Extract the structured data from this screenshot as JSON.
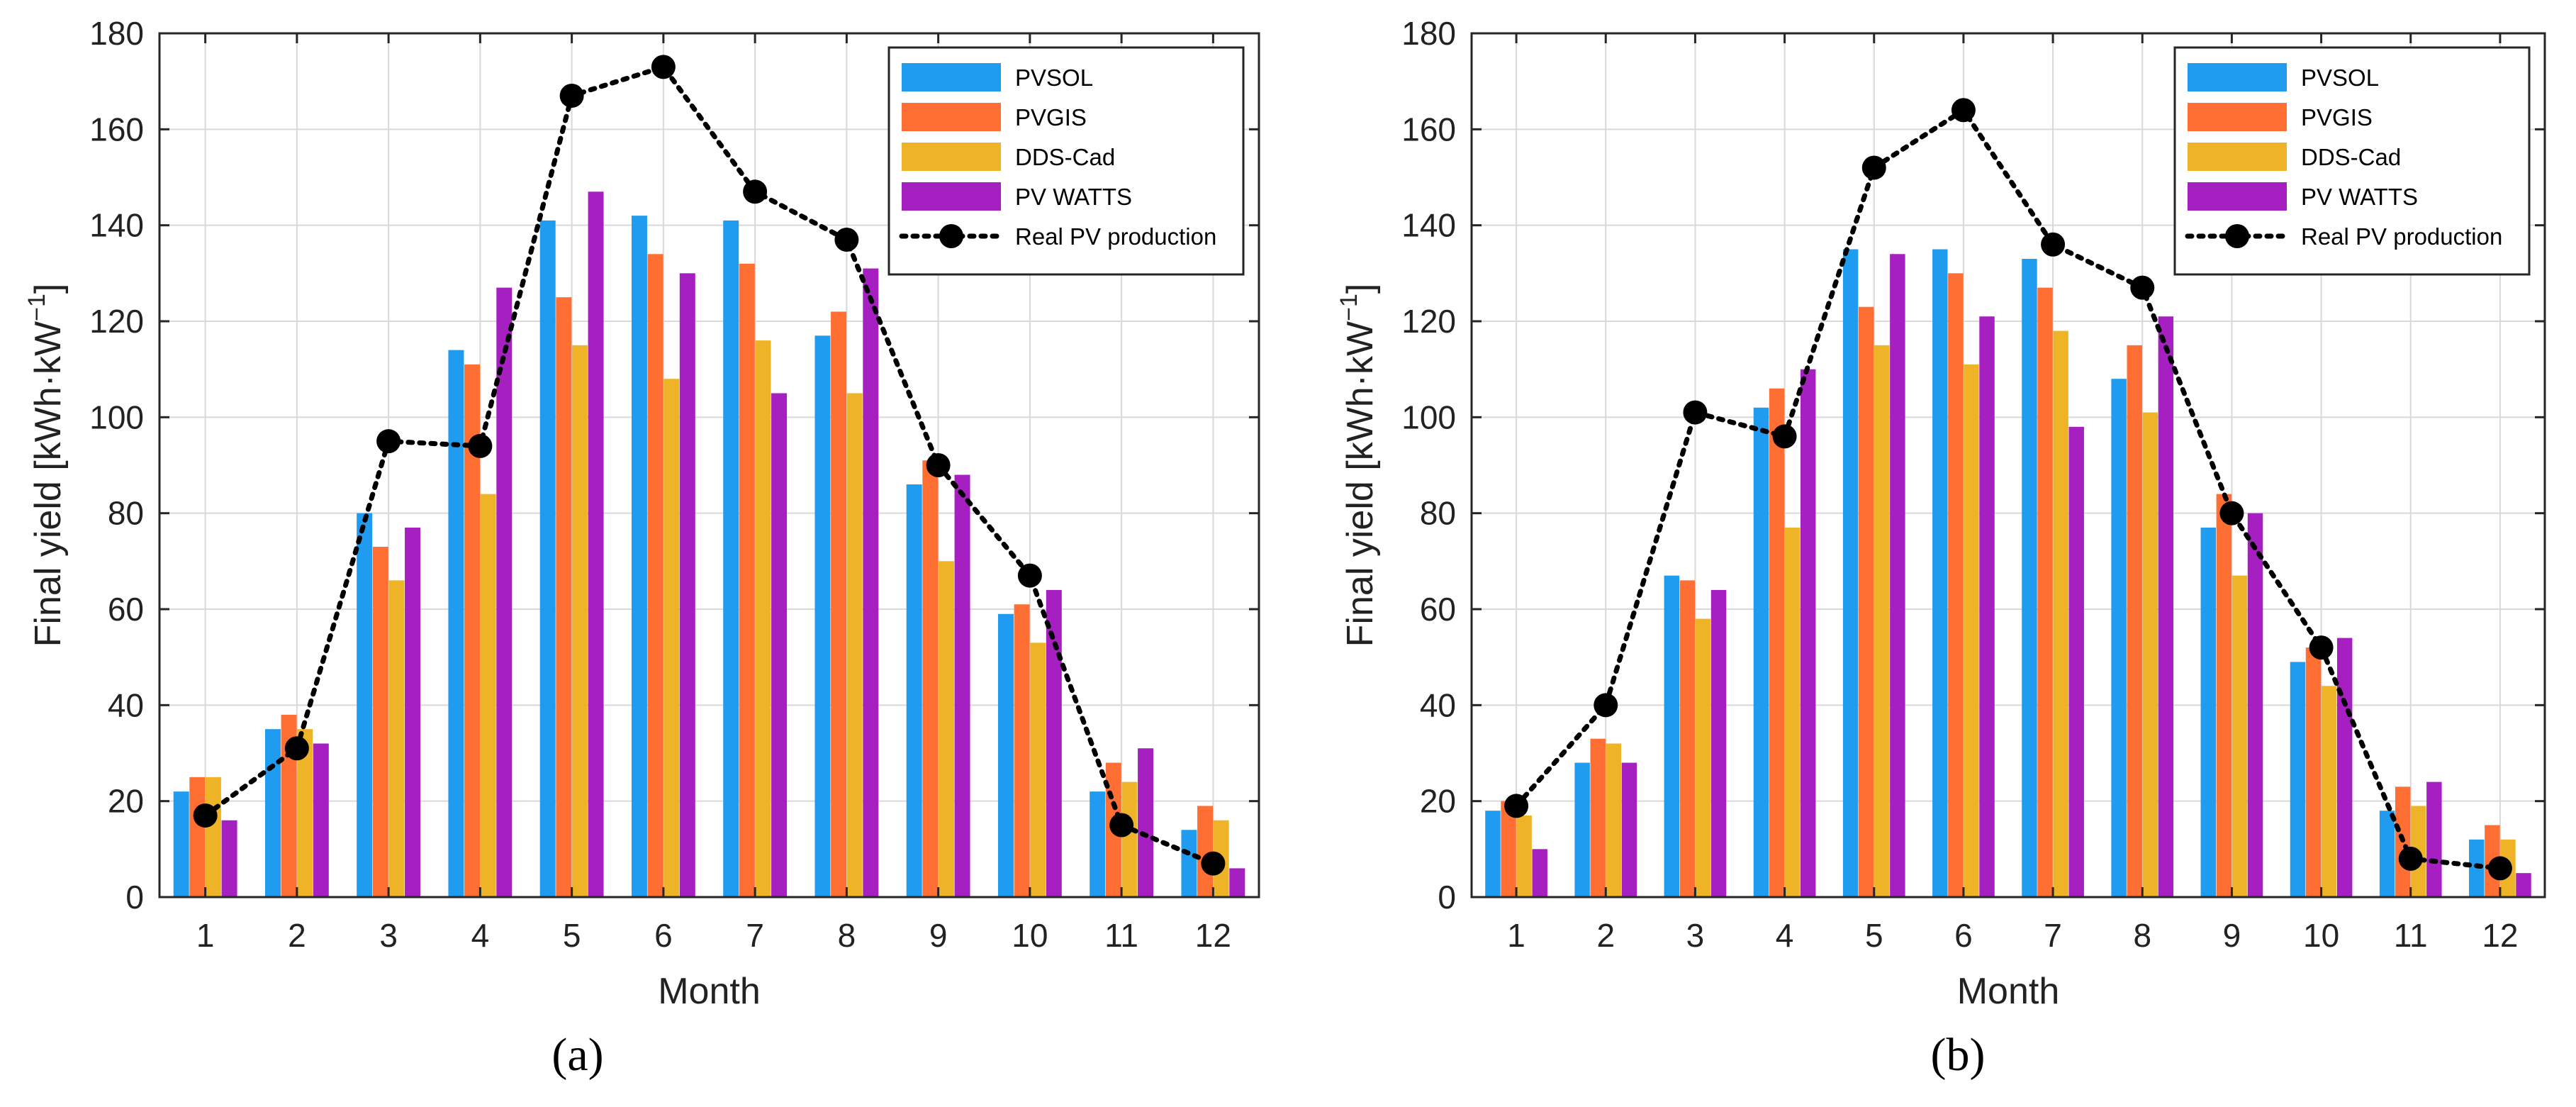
{
  "figure": {
    "panel_labels": [
      "(a)",
      "(b)"
    ]
  },
  "chart_data": [
    {
      "type": "bar",
      "panel": "(a)",
      "title": "",
      "xlabel": "Month",
      "ylabel_main": "Final yield [kWh·kW",
      "ylabel_sup": "−1",
      "ylabel_end": "]",
      "ylim": [
        0,
        180
      ],
      "yticks": [
        0,
        20,
        40,
        60,
        80,
        100,
        120,
        140,
        160,
        180
      ],
      "categories": [
        "1",
        "2",
        "3",
        "4",
        "5",
        "6",
        "7",
        "8",
        "9",
        "10",
        "11",
        "12"
      ],
      "grid": true,
      "legend_position": "top-right",
      "series": [
        {
          "name": "PVSOL",
          "color": "#1f9cf0",
          "values": [
            22,
            35,
            80,
            114,
            141,
            142,
            141,
            117,
            86,
            59,
            22,
            14
          ]
        },
        {
          "name": "PVGIS",
          "color": "#ff6e33",
          "values": [
            25,
            38,
            73,
            111,
            125,
            134,
            132,
            122,
            91,
            61,
            28,
            19
          ]
        },
        {
          "name": "DDS-Cad",
          "color": "#efb327",
          "values": [
            25,
            35,
            66,
            84,
            115,
            108,
            116,
            105,
            70,
            53,
            24,
            16
          ]
        },
        {
          "name": "PV WATTS",
          "color": "#a61fc0",
          "values": [
            16,
            32,
            77,
            127,
            147,
            130,
            105,
            131,
            88,
            64,
            31,
            6
          ]
        }
      ],
      "line": {
        "name": "Real PV production",
        "color": "#000000",
        "values": [
          17,
          31,
          95,
          94,
          167,
          173,
          147,
          137,
          90,
          67,
          15,
          7
        ]
      }
    },
    {
      "type": "bar",
      "panel": "(b)",
      "title": "",
      "xlabel": "Month",
      "ylabel_main": "Final yield [kWh·kW",
      "ylabel_sup": "−1",
      "ylabel_end": "]",
      "ylim": [
        0,
        180
      ],
      "yticks": [
        0,
        20,
        40,
        60,
        80,
        100,
        120,
        140,
        160,
        180
      ],
      "categories": [
        "1",
        "2",
        "3",
        "4",
        "5",
        "6",
        "7",
        "8",
        "9",
        "10",
        "11",
        "12"
      ],
      "grid": true,
      "legend_position": "top-right",
      "series": [
        {
          "name": "PVSOL",
          "color": "#1f9cf0",
          "values": [
            18,
            28,
            67,
            102,
            135,
            135,
            133,
            108,
            77,
            49,
            18,
            12
          ]
        },
        {
          "name": "PVGIS",
          "color": "#ff6e33",
          "values": [
            20,
            33,
            66,
            106,
            123,
            130,
            127,
            115,
            84,
            52,
            23,
            15
          ]
        },
        {
          "name": "DDS-Cad",
          "color": "#efb327",
          "values": [
            17,
            32,
            58,
            77,
            115,
            111,
            118,
            101,
            67,
            44,
            19,
            12
          ]
        },
        {
          "name": "PV WATTS",
          "color": "#a61fc0",
          "values": [
            10,
            28,
            64,
            110,
            134,
            121,
            98,
            121,
            80,
            54,
            24,
            5
          ]
        }
      ],
      "line": {
        "name": "Real PV production",
        "color": "#000000",
        "values": [
          19,
          40,
          101,
          96,
          152,
          164,
          136,
          127,
          80,
          52,
          8,
          6
        ]
      }
    }
  ]
}
